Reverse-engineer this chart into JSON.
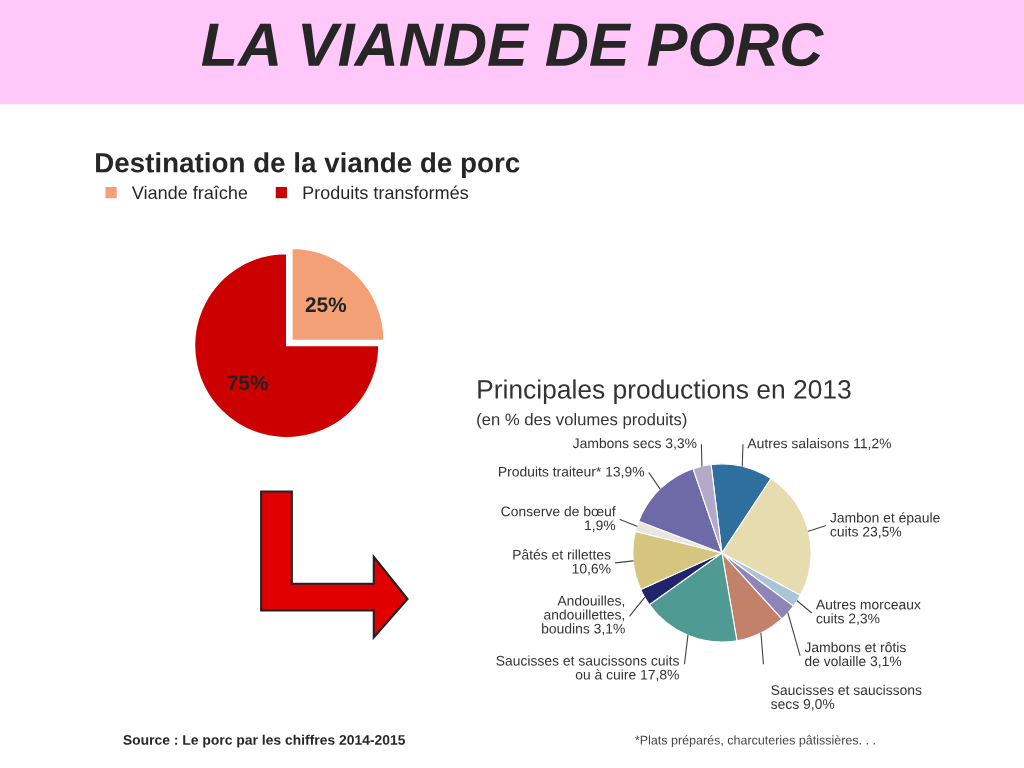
{
  "chart_data": [
    {
      "type": "pie",
      "title": "LA VIANDE DE PORC",
      "subtitle": "Destination de la viande de porc",
      "categories": [
        "Viande fraîche",
        "Produits transformés"
      ],
      "values": [
        25,
        75
      ],
      "colors": [
        "#f4a077",
        "#cc0000"
      ],
      "value_labels": [
        "25%",
        "75%"
      ],
      "legend": "top",
      "annotations": [
        "Source : Le porc par les chiffres 2014-2015"
      ]
    },
    {
      "type": "pie",
      "title": "Principales productions en 2013",
      "subtitle": "(en % des volumes produits)",
      "categories": [
        "Autres salaisons 11,2%",
        "Jambon et épaule\ncuits 23,5%",
        "Autres morceaux\ncuits 2,3%",
        "Jambons et rôtis\nde volaille 3,1%",
        "Saucisses et saucissons\nsecs 9,0%",
        "Saucisses et saucissons cuits\nou à cuire 17,8%",
        "Andouilles,\nandouillettes,\nboudins 3,1%",
        "Pâtés et rillettes\n10,6%",
        "Conserve de bœuf\n1,9%",
        "Produits traiteur* 13,9%",
        "Jambons secs 3,3%"
      ],
      "values": [
        11.2,
        23.5,
        2.3,
        3.1,
        9.0,
        17.8,
        3.1,
        10.6,
        1.9,
        13.9,
        3.3
      ],
      "colors": [
        "#2e6f9e",
        "#e6dcb0",
        "#a9c4d8",
        "#8f84b8",
        "#c2826a",
        "#4f9a93",
        "#20246a",
        "#d6c57e",
        "#e8e6de",
        "#6e6aa8",
        "#b3a9c8"
      ],
      "legend": false,
      "annotations": [
        "*Plats préparés, charcuteries pâtissières. . ."
      ]
    }
  ]
}
